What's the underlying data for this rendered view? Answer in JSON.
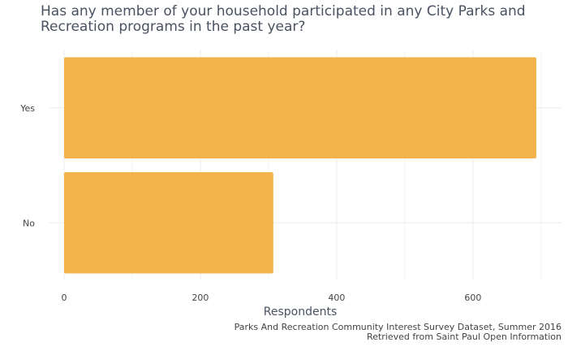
{
  "title": "Has any member of your household participated in any City Parks and\nRecreation programs in the past year?",
  "caption": {
    "line1": "Parks And Recreation Community Interest Survey Dataset, Summer 2016",
    "line2": "Retrieved from Saint Paul Open Information"
  },
  "chart_data": {
    "type": "bar",
    "orientation": "horizontal",
    "categories": [
      "Yes",
      "No"
    ],
    "values": [
      693,
      307
    ],
    "xlabel": "Respondents",
    "ylabel": "",
    "xlim": [
      0,
      730
    ],
    "x_ticks": [
      0,
      200,
      400,
      600
    ],
    "grid": true,
    "bar_color": "#F4B24A"
  }
}
